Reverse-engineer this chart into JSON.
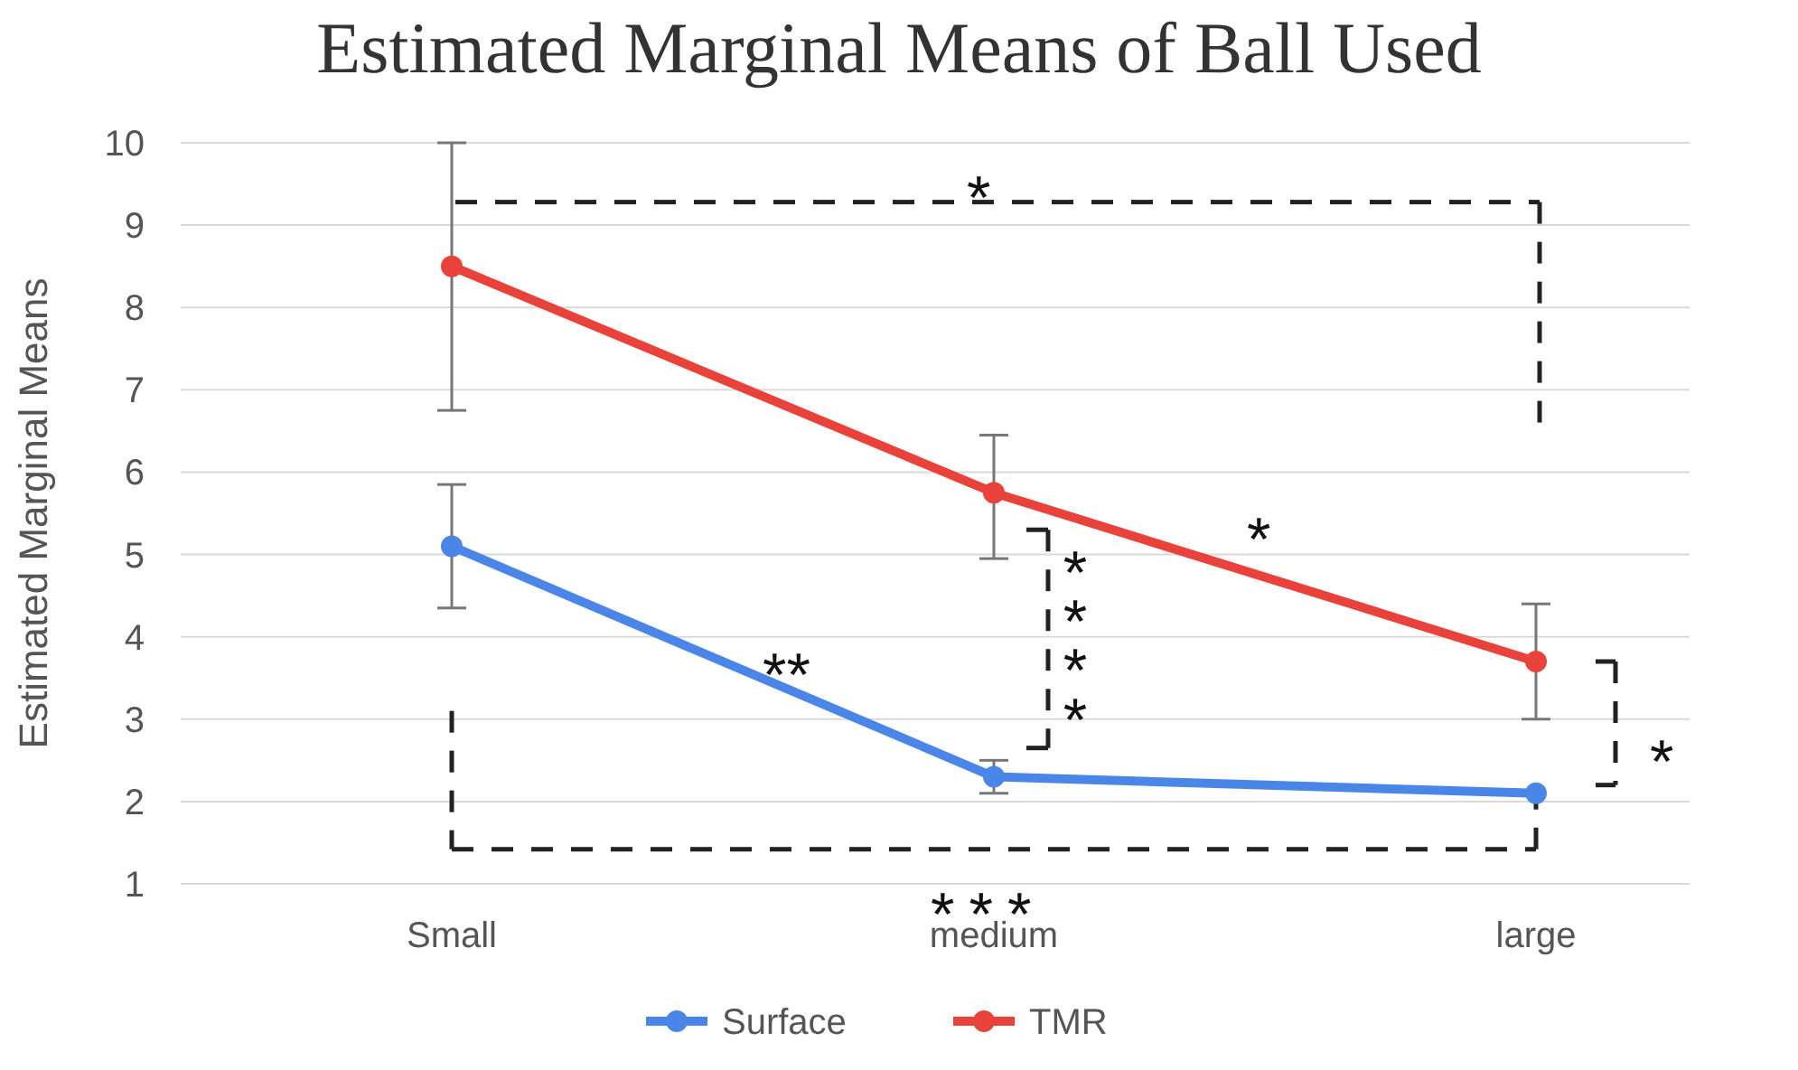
{
  "chart_data": {
    "type": "line",
    "title": "Estimated Marginal Means of Ball Used",
    "ylabel": "Estimated Marginal Means",
    "categories": [
      "Small",
      "medium",
      "large"
    ],
    "series": [
      {
        "name": "Surface",
        "color": "#4a86e8",
        "values": [
          5.1,
          2.3,
          2.1
        ],
        "errors": [
          [
            4.35,
            5.85
          ],
          [
            2.1,
            2.5
          ],
          null
        ]
      },
      {
        "name": "TMR",
        "color": "#e8423a",
        "values": [
          8.5,
          5.75,
          3.7
        ],
        "errors": [
          [
            6.75,
            10
          ],
          [
            4.95,
            6.45
          ],
          [
            3.0,
            4.4
          ]
        ]
      }
    ],
    "ylim": [
      1,
      10
    ],
    "yticks": [
      1,
      2,
      3,
      4,
      5,
      6,
      7,
      8,
      9,
      10
    ],
    "grid": "y",
    "legend": "bottom",
    "marker": "circle",
    "line_style": "solid",
    "annotations": [
      "*",
      "**",
      "****",
      "*",
      "*",
      "***"
    ]
  }
}
